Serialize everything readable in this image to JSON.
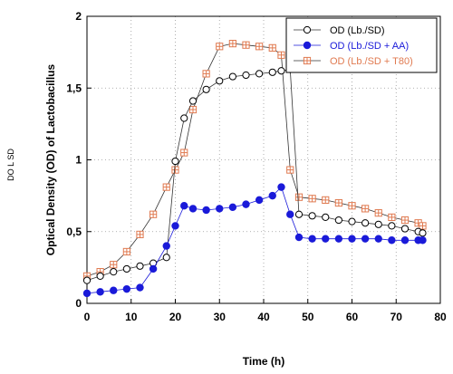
{
  "side_label": "DO L SD",
  "chart_data": {
    "type": "line",
    "xlabel": "Time (h)",
    "ylabel": "Optical Density (OD) of Lactobacillus",
    "xlim": [
      0,
      80
    ],
    "ylim": [
      0,
      2
    ],
    "xticks": [
      0,
      10,
      20,
      30,
      40,
      50,
      60,
      70,
      80
    ],
    "yticks": [
      0,
      0.5,
      1,
      1.5,
      2
    ],
    "ytick_labels": [
      "0",
      "0,5",
      "1",
      "1,5",
      "2"
    ],
    "grid": true,
    "legend_position": "top-right",
    "series": [
      {
        "name": "OD (Lb./SD)",
        "marker": "open-circle",
        "color": "#000000",
        "line_color": "#333333",
        "x": [
          0,
          3,
          6,
          9,
          12,
          15,
          18,
          20,
          22,
          24,
          27,
          30,
          33,
          36,
          39,
          42,
          44,
          46,
          48,
          51,
          54,
          57,
          60,
          63,
          66,
          69,
          72,
          75,
          76
        ],
        "y": [
          0.16,
          0.19,
          0.22,
          0.24,
          0.26,
          0.28,
          0.32,
          0.99,
          1.29,
          1.41,
          1.49,
          1.55,
          1.58,
          1.59,
          1.6,
          1.61,
          1.62,
          1.63,
          0.62,
          0.61,
          0.6,
          0.58,
          0.57,
          0.56,
          0.55,
          0.54,
          0.52,
          0.5,
          0.49
        ]
      },
      {
        "name": "OD (Lb./SD + AA)",
        "marker": "filled-circle",
        "color": "#1a1ad9",
        "line_color": "#1a1ad9",
        "x": [
          0,
          3,
          6,
          9,
          12,
          15,
          18,
          20,
          22,
          24,
          27,
          30,
          33,
          36,
          39,
          42,
          44,
          46,
          48,
          51,
          54,
          57,
          60,
          63,
          66,
          69,
          72,
          75,
          76
        ],
        "y": [
          0.07,
          0.08,
          0.09,
          0.1,
          0.11,
          0.24,
          0.4,
          0.54,
          0.68,
          0.66,
          0.65,
          0.66,
          0.67,
          0.69,
          0.72,
          0.75,
          0.81,
          0.62,
          0.46,
          0.45,
          0.45,
          0.45,
          0.45,
          0.45,
          0.45,
          0.44,
          0.44,
          0.44,
          0.44
        ]
      },
      {
        "name": "OD (Lb./SD + T80)",
        "marker": "crossed-square",
        "color": "#e07a50",
        "line_color": "#333333",
        "x": [
          0,
          3,
          6,
          9,
          12,
          15,
          18,
          20,
          22,
          24,
          27,
          30,
          33,
          36,
          39,
          42,
          44,
          46,
          48,
          51,
          54,
          57,
          60,
          63,
          66,
          69,
          72,
          75,
          76
        ],
        "y": [
          0.19,
          0.22,
          0.27,
          0.36,
          0.48,
          0.62,
          0.81,
          0.93,
          1.05,
          1.35,
          1.6,
          1.79,
          1.81,
          1.8,
          1.79,
          1.78,
          1.73,
          0.93,
          0.74,
          0.73,
          0.72,
          0.7,
          0.68,
          0.66,
          0.63,
          0.6,
          0.58,
          0.56,
          0.54
        ]
      }
    ]
  }
}
